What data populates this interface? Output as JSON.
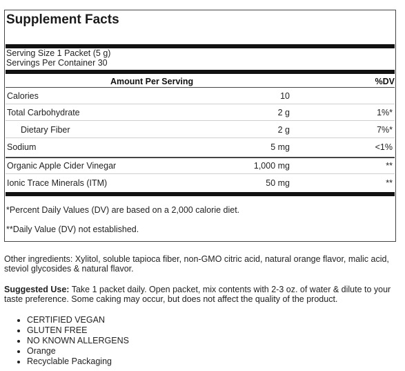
{
  "facts": {
    "title": "Supplement Facts",
    "serving_size": "Serving Size 1 Packet (5 g)",
    "servings_per_container": "Servings Per Container 30",
    "header_amount": "Amount Per Serving",
    "header_dv": "%DV",
    "rows": [
      {
        "name": "Calories",
        "amount": "10",
        "dv": ""
      },
      {
        "name": "Total Carbohydrate",
        "amount": "2 g",
        "dv": "1%*"
      },
      {
        "name": "Dietary Fiber",
        "amount": "2 g",
        "dv": "7%*"
      },
      {
        "name": "Sodium",
        "amount": "5 mg",
        "dv": "<1%"
      },
      {
        "name": "Organic Apple Cider Vinegar",
        "amount": "1,000 mg",
        "dv": "**"
      },
      {
        "name": "Ionic Trace Minerals (ITM)",
        "amount": "50 mg",
        "dv": "**"
      }
    ],
    "footnote_1": "*Percent Daily Values (DV) are based on a 2,000 calorie diet.",
    "footnote_2": "**Daily Value (DV) not established."
  },
  "other_ingredients": "Other ingredients: Xylitol, soluble tapioca fiber, non-GMO citric acid, natural orange flavor, malic acid, steviol glycosides & natural flavor.",
  "suggested_use": {
    "label": "Suggested Use:",
    "text": " Take 1 packet daily. Open packet, mix contents with 2-3 oz. of water & dilute to your taste preference. Some caking may occur, but does not affect the quality of the product."
  },
  "features": [
    "CERTIFIED VEGAN",
    "GLUTEN FREE",
    "NO KNOWN ALLERGENS",
    "Orange",
    "Recyclable Packaging"
  ]
}
